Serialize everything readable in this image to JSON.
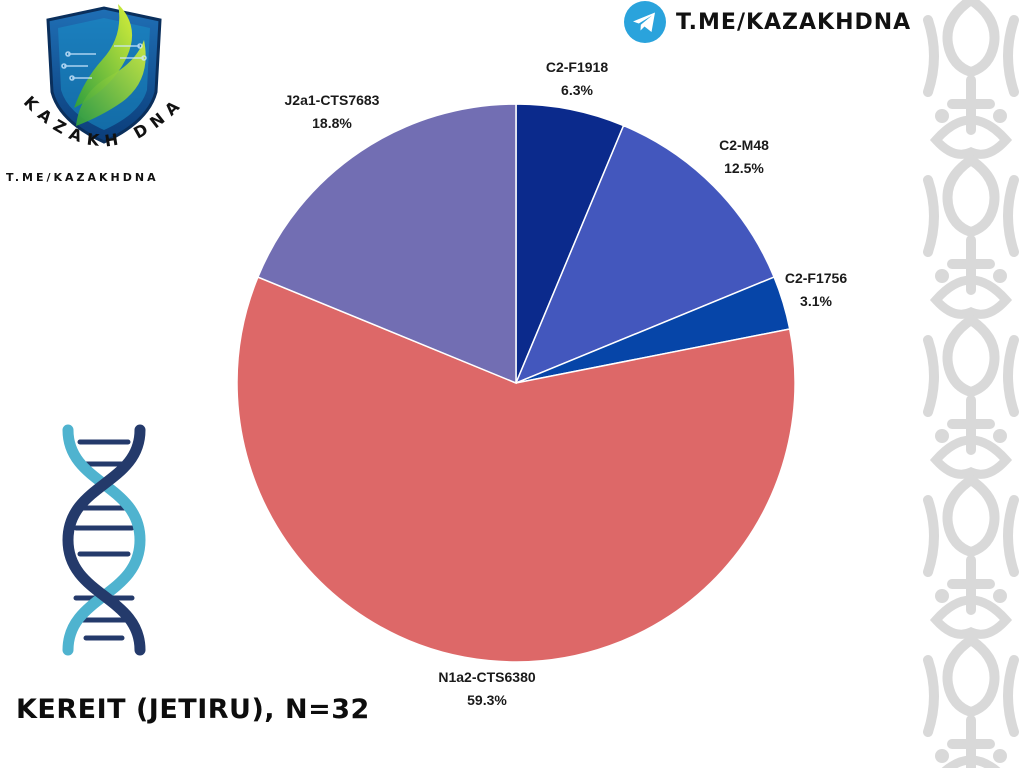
{
  "header": {
    "logo_text": "KAZAKH DNA",
    "logo_url": "T.ME/KAZAKHDNA",
    "telegram_link": "T.ME/KAZAKHDNA"
  },
  "chart_data": {
    "type": "pie",
    "title": "KEREIT (JETIRU), N=32",
    "slices": [
      {
        "label": "C2-F1918",
        "percent": 6.3,
        "display": "6.3%",
        "color": "#0b2a8c"
      },
      {
        "label": "C2-M48",
        "percent": 12.5,
        "display": "12.5%",
        "color": "#4357bd"
      },
      {
        "label": "C2-F1756",
        "percent": 3.1,
        "display": "3.1%",
        "color": "#0645a8"
      },
      {
        "label": "N1a2-CTS6380",
        "percent": 59.3,
        "display": "59.3%",
        "color": "#dd6868"
      },
      {
        "label": "J2a1-CTS7683",
        "percent": 18.8,
        "display": "18.8%",
        "color": "#726eb3"
      }
    ],
    "start": "12 o'clock",
    "direction": "clockwise",
    "labels_outside": true
  },
  "colors": {
    "ornament": "#d9d9d9",
    "dna_dark": "#243a6b",
    "dna_light": "#4fb3cf",
    "telegram": "#2aa3dc"
  }
}
